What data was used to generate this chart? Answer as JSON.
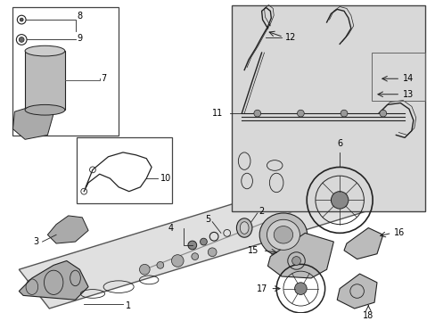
{
  "bg": "white",
  "lc": "#222222",
  "gray_bg": "#d8d8d8",
  "box_bg": "#e0e0e0",
  "figsize": [
    4.89,
    3.6
  ],
  "dpi": 100,
  "xlim": [
    0,
    489
  ],
  "ylim": [
    0,
    360
  ]
}
